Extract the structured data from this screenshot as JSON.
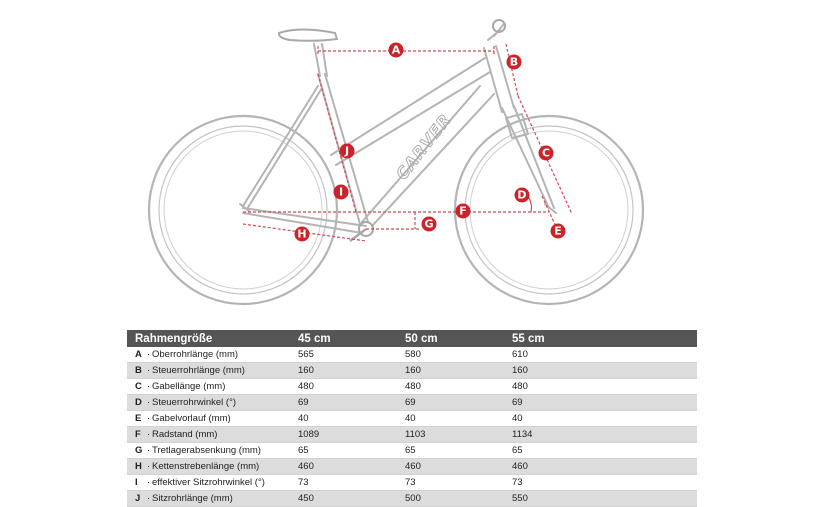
{
  "diagram": {
    "brand_text": "CARVER",
    "marker_color": "#cc2229",
    "line_color": "#d44a52",
    "bike_color": "#b4b4b4",
    "markers": [
      "A",
      "B",
      "C",
      "D",
      "E",
      "F",
      "G",
      "H",
      "I",
      "J"
    ]
  },
  "table": {
    "header": [
      "Rahmengröße",
      "45 cm",
      "50 cm",
      "55 cm"
    ],
    "header_color": "#555555",
    "rows": [
      {
        "letter": "A",
        "label": "Oberrohrlänge (mm)",
        "values": [
          "565",
          "580",
          "610"
        ]
      },
      {
        "letter": "B",
        "label": "Steuerrohrlänge (mm)",
        "values": [
          "160",
          "160",
          "160"
        ]
      },
      {
        "letter": "C",
        "label": "Gabellänge (mm)",
        "values": [
          "480",
          "480",
          "480"
        ]
      },
      {
        "letter": "D",
        "label": "Steuerrohrwinkel (°)",
        "values": [
          "69",
          "69",
          "69"
        ]
      },
      {
        "letter": "E",
        "label": "Gabelvorlauf (mm)",
        "values": [
          "40",
          "40",
          "40"
        ]
      },
      {
        "letter": "F",
        "label": "Radstand (mm)",
        "values": [
          "1089",
          "1103",
          "1134"
        ]
      },
      {
        "letter": "G",
        "label": "Tretlagerabsenkung (mm)",
        "values": [
          "65",
          "65",
          "65"
        ]
      },
      {
        "letter": "H",
        "label": "Kettenstrebenlänge (mm)",
        "values": [
          "460",
          "460",
          "460"
        ]
      },
      {
        "letter": "I",
        "label": "effektiver Sitzrohrwinkel (°)",
        "values": [
          "73",
          "73",
          "73"
        ]
      },
      {
        "letter": "J",
        "label": "Sitzrohrlänge (mm)",
        "values": [
          "450",
          "500",
          "550"
        ]
      }
    ]
  }
}
